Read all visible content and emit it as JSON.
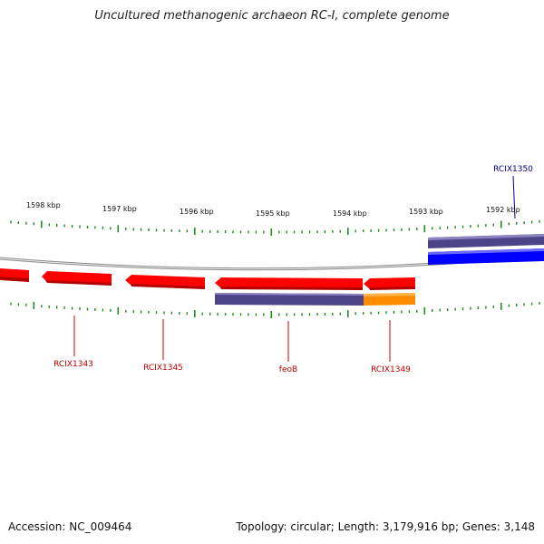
{
  "title": "Uncultured methanogenic archaeon RC-I, complete genome",
  "footer": {
    "accession": "Accession: NC_009464",
    "stats": "Topology: circular; Length: 3,179,916 bp; Genes: 3,148"
  },
  "colors": {
    "cds_reverse": "#ff0000",
    "cds_forward": "#0000ff",
    "orf_track": "#4d4488",
    "orf_highlight": "#ff8c00",
    "tick": "#228b22",
    "backbone": "#999999",
    "label_reverse": "#c00000",
    "label_forward": "#00008b"
  },
  "ruler": {
    "labels": [
      "1598 kbp",
      "1597 kbp",
      "1596 kbp",
      "1595 kbp",
      "1594 kbp",
      "1593 kbp",
      "1592 kbp"
    ]
  },
  "genes": [
    {
      "name": "RCIX1343",
      "strand": "reverse"
    },
    {
      "name": "RCIX1345",
      "strand": "reverse"
    },
    {
      "name": "feoB",
      "strand": "reverse"
    },
    {
      "name": "RCIX1349",
      "strand": "reverse"
    },
    {
      "name": "RCIX1350",
      "strand": "forward"
    }
  ]
}
